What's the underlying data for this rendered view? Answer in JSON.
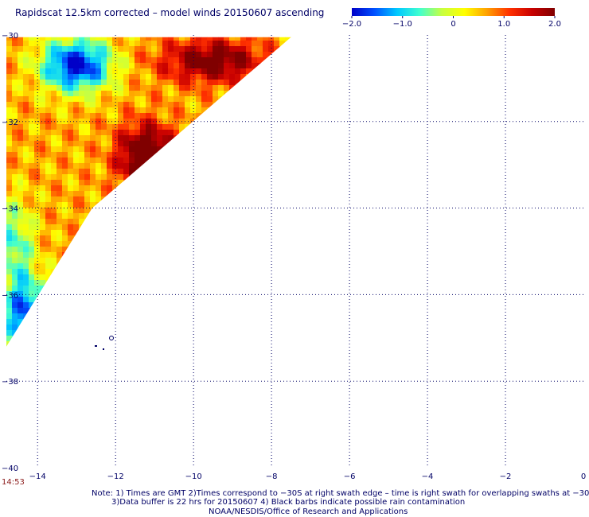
{
  "title": "Rapidscat 12.5km corrected – model winds 20150607 ascending",
  "time_stamp": "14:53",
  "colorbar": {
    "tick_labels": [
      "−2.0",
      "−1.0",
      "0",
      "1.0",
      "2.0"
    ],
    "tick_values": [
      -2.0,
      -1.0,
      0,
      1.0,
      2.0
    ],
    "range": [
      -2.0,
      2.0
    ],
    "colors": [
      "#0000c8",
      "#0050ff",
      "#00c8ff",
      "#40ffd0",
      "#c8ff40",
      "#ffff00",
      "#ffa000",
      "#ff3000",
      "#c80000",
      "#800000"
    ]
  },
  "map": {
    "lat_labels": [
      "−30",
      "−32",
      "−34",
      "−36",
      "−38",
      "−40"
    ],
    "lat_values": [
      -30,
      -32,
      -34,
      -36,
      -38,
      -40
    ],
    "lon_labels": [
      "−14",
      "−12",
      "−10",
      "−8",
      "−6",
      "−4",
      "−2",
      "0"
    ],
    "lon_values": [
      -14,
      -12,
      -10,
      -8,
      -6,
      -4,
      -2,
      0
    ],
    "lat_range": [
      -40,
      -30
    ],
    "lon_range": [
      -14.8,
      0
    ],
    "grid": "dotted",
    "swath_edge": [
      [
        -14.8,
        -30.05
      ],
      [
        -7.5,
        -30.05
      ],
      [
        -12.6,
        -34.0
      ],
      [
        -14.8,
        -37.2
      ]
    ]
  },
  "notes": {
    "line1": "Note: 1) Times are GMT 2)Times correspond to −30S at right swath edge – time is right swath for overlapping swaths at −30S",
    "line2": "3)Data buffer is 22 hrs for 20150607 4) Black barbs indicate possible rain contamination",
    "line3": "NOAA/NESDIS/Office of Research and Applications"
  }
}
